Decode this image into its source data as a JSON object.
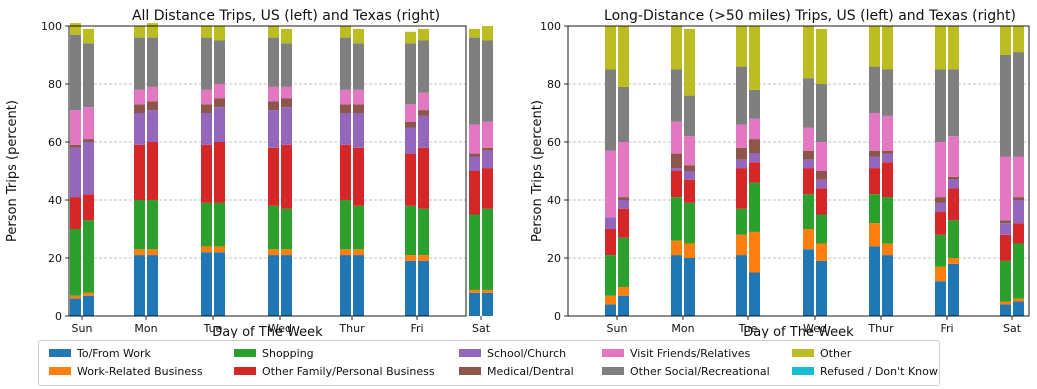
{
  "chart_data": [
    {
      "type": "bar",
      "stacked": true,
      "title": "All Distance Trips,  US (left) and Texas (right)",
      "xlabel": "Day of The Week",
      "ylabel": "Person Trips (percent)",
      "ylim": [
        0,
        100
      ],
      "yticks": [
        0,
        20,
        40,
        60,
        80,
        100
      ],
      "grid": "horizontal dashed",
      "categories": [
        "Sun",
        "Mon",
        "Tue",
        "Wed",
        "Thur",
        "Fri",
        "Sat"
      ],
      "groups": [
        "US",
        "Texas"
      ],
      "series": [
        {
          "name": "To/From Work",
          "US": [
            6,
            21,
            22,
            21,
            21,
            19,
            8
          ],
          "Texas": [
            7,
            21,
            22,
            21,
            21,
            19,
            8
          ]
        },
        {
          "name": "Work-Related Business",
          "US": [
            1,
            2,
            2,
            2,
            2,
            2,
            1
          ],
          "Texas": [
            1,
            2,
            2,
            2,
            2,
            2,
            1
          ]
        },
        {
          "name": "Shopping",
          "US": [
            23,
            17,
            15,
            15,
            17,
            17,
            26
          ],
          "Texas": [
            25,
            17,
            15,
            14,
            15,
            16,
            28
          ]
        },
        {
          "name": "Other Family/Personal Business",
          "US": [
            11,
            19,
            20,
            20,
            19,
            18,
            15
          ],
          "Texas": [
            9,
            20,
            21,
            22,
            20,
            21,
            14
          ]
        },
        {
          "name": "School/Church",
          "US": [
            17,
            11,
            11,
            13,
            11,
            9,
            5
          ],
          "Texas": [
            18,
            11,
            12,
            13,
            12,
            11,
            6
          ]
        },
        {
          "name": "Medical/Dentral",
          "US": [
            1,
            3,
            3,
            3,
            3,
            2,
            1
          ],
          "Texas": [
            1,
            3,
            3,
            3,
            3,
            2,
            1
          ]
        },
        {
          "name": "Visit Friends/Relatives",
          "US": [
            12,
            5,
            5,
            5,
            5,
            6,
            10
          ],
          "Texas": [
            11,
            5,
            5,
            4,
            5,
            6,
            9
          ]
        },
        {
          "name": "Other Social/Recreational",
          "US": [
            26,
            18,
            18,
            17,
            18,
            21,
            30
          ],
          "Texas": [
            22,
            17,
            15,
            15,
            16,
            18,
            28
          ]
        },
        {
          "name": "Other",
          "US": [
            4,
            4,
            4,
            4,
            4,
            4,
            3
          ],
          "Texas": [
            5,
            5,
            5,
            5,
            5,
            4,
            5
          ]
        },
        {
          "name": "Refused / Don't Know",
          "US": [
            0,
            0,
            0,
            0,
            0,
            0,
            0
          ],
          "Texas": [
            0,
            0,
            0,
            0,
            0,
            0,
            0
          ]
        }
      ]
    },
    {
      "type": "bar",
      "stacked": true,
      "title": "Long-Distance (>50 miles) Trips, US (left) and Texas (right)",
      "xlabel": "Day of The Week",
      "ylabel": "Person Trips (percent)",
      "ylim": [
        0,
        100
      ],
      "yticks": [
        0,
        20,
        40,
        60,
        80,
        100
      ],
      "grid": "horizontal dashed",
      "categories": [
        "Sun",
        "Mon",
        "Tue",
        "Wed",
        "Thur",
        "Fri",
        "Sat"
      ],
      "groups": [
        "US",
        "Texas"
      ],
      "series": [
        {
          "name": "To/From Work",
          "US": [
            4,
            21,
            21,
            23,
            24,
            12,
            4
          ],
          "Texas": [
            7,
            20,
            15,
            19,
            21,
            18,
            5
          ]
        },
        {
          "name": "Work-Related Business",
          "US": [
            3,
            5,
            7,
            7,
            8,
            5,
            1
          ],
          "Texas": [
            3,
            5,
            14,
            6,
            4,
            2,
            1
          ]
        },
        {
          "name": "Shopping",
          "US": [
            14,
            15,
            9,
            12,
            10,
            11,
            14
          ],
          "Texas": [
            17,
            14,
            17,
            10,
            16,
            13,
            19
          ]
        },
        {
          "name": "Other Family/Personal Business",
          "US": [
            9,
            9,
            14,
            9,
            9,
            8,
            9
          ],
          "Texas": [
            10,
            8,
            7,
            9,
            12,
            11,
            7
          ]
        },
        {
          "name": "School/Church",
          "US": [
            4,
            1,
            3,
            3,
            4,
            3,
            4
          ],
          "Texas": [
            3,
            3,
            3,
            3,
            3,
            3,
            8
          ]
        },
        {
          "name": "Medical/Dentral",
          "US": [
            0,
            5,
            4,
            3,
            2,
            2,
            1
          ],
          "Texas": [
            1,
            2,
            5,
            3,
            1,
            1,
            1
          ]
        },
        {
          "name": "Visit Friends/Relatives",
          "US": [
            23,
            11,
            8,
            8,
            13,
            19,
            22
          ],
          "Texas": [
            19,
            10,
            7,
            10,
            12,
            14,
            14
          ]
        },
        {
          "name": "Other Social/Recreational",
          "US": [
            28,
            18,
            20,
            17,
            16,
            25,
            35
          ],
          "Texas": [
            19,
            14,
            10,
            20,
            16,
            23,
            36
          ]
        },
        {
          "name": "Other",
          "US": [
            15,
            15,
            14,
            18,
            14,
            15,
            10
          ],
          "Texas": [
            21,
            23,
            22,
            19,
            15,
            15,
            9
          ]
        },
        {
          "name": "Refused / Don't Know",
          "US": [
            0,
            0,
            0,
            0,
            0,
            0,
            0
          ],
          "Texas": [
            0,
            0,
            0,
            0,
            0,
            0,
            0
          ]
        }
      ]
    }
  ],
  "legend": {
    "items": [
      {
        "label": "To/From Work",
        "color": "#1f77b4"
      },
      {
        "label": "Work-Related Business",
        "color": "#ff7f0e"
      },
      {
        "label": "Shopping",
        "color": "#2ca02c"
      },
      {
        "label": "Other Family/Personal Business",
        "color": "#d62728"
      },
      {
        "label": "School/Church",
        "color": "#9467bd"
      },
      {
        "label": "Medical/Dentral",
        "color": "#8c564b"
      },
      {
        "label": "Visit Friends/Relatives",
        "color": "#e377c2"
      },
      {
        "label": "Other Social/Recreational",
        "color": "#7f7f7f"
      },
      {
        "label": "Other",
        "color": "#bcbd22"
      },
      {
        "label": "Refused / Don't Know",
        "color": "#17becf"
      }
    ]
  }
}
